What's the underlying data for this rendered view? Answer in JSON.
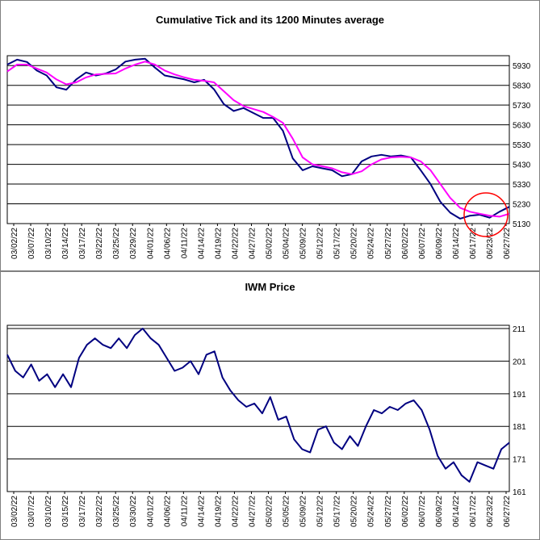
{
  "chart_data": [
    {
      "type": "line",
      "title": "Cumulative Tick and its 1200 Minutes average",
      "ylim": [
        5130,
        5980
      ],
      "yticks": [
        5130,
        5230,
        5330,
        5430,
        5530,
        5630,
        5730,
        5830,
        5930
      ],
      "grid": "horizontal",
      "x_tick_labels": [
        "03/02/22",
        "03/07/22",
        "03/10/22",
        "03/14/22",
        "03/17/22",
        "03/22/22",
        "03/25/22",
        "03/29/22",
        "04/01/22",
        "04/06/22",
        "04/11/22",
        "04/14/22",
        "04/19/22",
        "04/22/22",
        "04/27/22",
        "05/02/22",
        "05/04/22",
        "05/09/22",
        "05/12/22",
        "05/17/22",
        "05/20/22",
        "05/24/22",
        "05/27/22",
        "06/02/22",
        "06/07/22",
        "06/09/22",
        "06/14/22",
        "06/17/22",
        "06/23/22",
        "06/27/22"
      ],
      "series": [
        {
          "role": "cumulative-tick",
          "color": "#000080",
          "values": [
            5935,
            5960,
            5948,
            5905,
            5880,
            5820,
            5808,
            5860,
            5895,
            5880,
            5890,
            5910,
            5950,
            5960,
            5965,
            5920,
            5880,
            5870,
            5860,
            5845,
            5858,
            5810,
            5735,
            5700,
            5715,
            5690,
            5665,
            5665,
            5600,
            5460,
            5400,
            5420,
            5410,
            5400,
            5370,
            5380,
            5445,
            5470,
            5478,
            5470,
            5475,
            5465,
            5400,
            5330,
            5240,
            5185,
            5155,
            5170,
            5175,
            5160,
            5190,
            5215
          ]
        },
        {
          "role": "1200-minute-average",
          "color": "#ff00ff",
          "values": [
            5900,
            5935,
            5935,
            5915,
            5895,
            5860,
            5835,
            5845,
            5870,
            5885,
            5888,
            5890,
            5915,
            5935,
            5950,
            5935,
            5905,
            5885,
            5870,
            5858,
            5853,
            5845,
            5800,
            5755,
            5725,
            5710,
            5695,
            5670,
            5640,
            5560,
            5465,
            5430,
            5420,
            5410,
            5390,
            5380,
            5395,
            5430,
            5455,
            5465,
            5468,
            5465,
            5445,
            5400,
            5330,
            5260,
            5210,
            5190,
            5180,
            5170,
            5165,
            5180
          ]
        }
      ]
    },
    {
      "type": "line",
      "title": "IWM Price",
      "ylim": [
        161,
        212
      ],
      "yticks": [
        161,
        171,
        181,
        191,
        201,
        211
      ],
      "grid": "horizontal",
      "x_tick_labels": [
        "03/02/22",
        "03/07/22",
        "03/10/22",
        "03/15/22",
        "03/17/22",
        "03/22/22",
        "03/25/22",
        "03/30/22",
        "04/01/22",
        "04/06/22",
        "04/11/22",
        "04/14/22",
        "04/19/22",
        "04/22/22",
        "04/27/22",
        "05/02/22",
        "05/05/22",
        "05/09/22",
        "05/12/22",
        "05/17/22",
        "05/20/22",
        "05/24/22",
        "05/27/22",
        "06/02/22",
        "06/07/22",
        "06/09/22",
        "06/14/22",
        "06/17/22",
        "06/23/22",
        "06/27/22"
      ],
      "series": [
        {
          "role": "iwm-price",
          "color": "#000080",
          "values": [
            203,
            198,
            196,
            200,
            195,
            197,
            193,
            197,
            193,
            202,
            206,
            208,
            206,
            205,
            208,
            205,
            209,
            211,
            208,
            206,
            202,
            198,
            199,
            201,
            197,
            203,
            204,
            196,
            192,
            189,
            187,
            188,
            185,
            190,
            183,
            184,
            177,
            174,
            173,
            180,
            181,
            176,
            174,
            178,
            175,
            181,
            186,
            185,
            187,
            186,
            188,
            189,
            186,
            180,
            172,
            168,
            170,
            166,
            164,
            170,
            169,
            168,
            174,
            176
          ]
        }
      ]
    }
  ]
}
